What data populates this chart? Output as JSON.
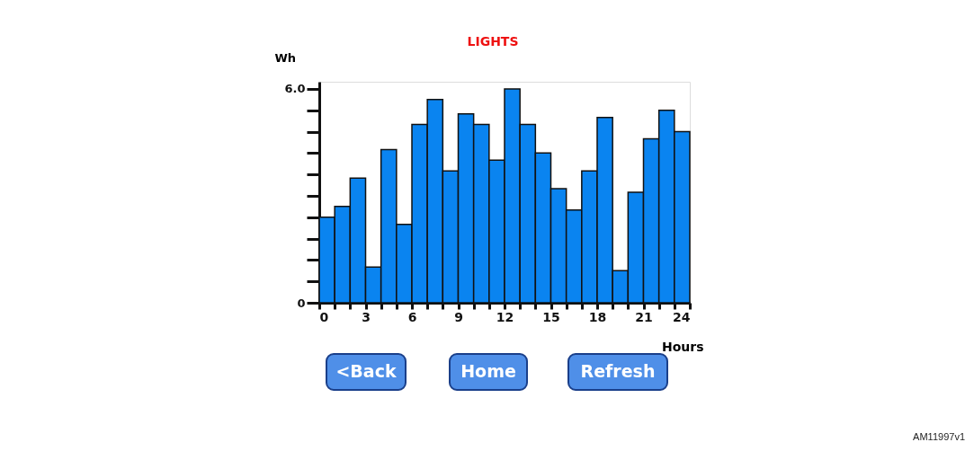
{
  "chart_data": {
    "type": "histogram",
    "title": "LIGHTS",
    "xlabel": "Hours",
    "ylabel": "Wh",
    "bins": [
      0,
      1,
      2,
      3,
      4,
      5,
      6,
      7,
      8,
      9,
      10,
      11,
      12,
      13,
      14,
      15,
      16,
      17,
      18,
      19,
      20,
      21,
      22,
      23,
      24
    ],
    "values": [
      2.4,
      2.7,
      3.5,
      1.0,
      4.3,
      2.2,
      5.0,
      5.7,
      3.7,
      5.3,
      5.0,
      4.0,
      6.0,
      5.0,
      4.2,
      3.2,
      2.6,
      3.7,
      5.2,
      0.9,
      3.1,
      4.6,
      5.4,
      4.8
    ],
    "color": "#0a84f0",
    "xlim": [
      0,
      24
    ],
    "xticks": [
      0,
      {
        "value": 1,
        "label": null
      },
      {
        "value": 2,
        "label": null
      },
      3,
      {
        "value": 4,
        "label": null
      },
      {
        "value": 5,
        "label": null
      },
      6,
      {
        "value": 7,
        "label": null
      },
      {
        "value": 8,
        "label": null
      },
      9,
      {
        "value": 10,
        "label": null
      },
      {
        "value": 11,
        "label": null
      },
      12,
      {
        "value": 13,
        "label": null
      },
      {
        "value": 14,
        "label": null
      },
      15,
      {
        "value": 16,
        "label": null
      },
      {
        "value": 17,
        "label": null
      },
      18,
      {
        "value": 19,
        "label": null
      },
      {
        "value": 20,
        "label": null
      },
      21,
      {
        "value": 22,
        "label": null
      },
      {
        "value": 23,
        "label": null
      },
      24
    ],
    "ylim": [
      0,
      6.2
    ],
    "yticks": [
      0,
      {
        "value": 0.6,
        "label": null
      },
      {
        "value": 1.2,
        "label": null
      },
      {
        "value": 1.8,
        "label": null
      },
      {
        "value": 2.4,
        "label": null
      },
      {
        "value": 3.0,
        "label": null
      },
      {
        "value": 3.6,
        "label": null
      },
      {
        "value": 4.2,
        "label": null
      },
      {
        "value": 4.8,
        "label": null
      },
      {
        "value": 5.4,
        "label": null
      },
      {
        "value": 6.0,
        "label": "6.0"
      }
    ],
    "grid": false,
    "annotations": [
      "<Back",
      "Home",
      "Refresh",
      "AM11997v1"
    ]
  }
}
